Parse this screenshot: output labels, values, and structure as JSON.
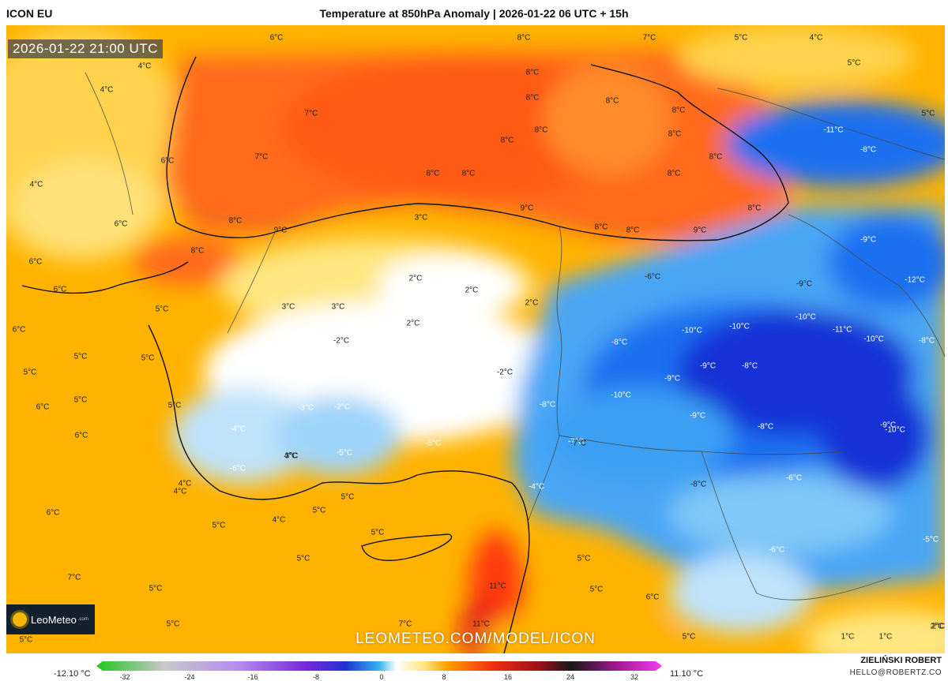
{
  "header": {
    "model": "ICON EU",
    "title": "Temperature at 850hPa Anomaly | 2026-01-22 06 UTC + 15h"
  },
  "map": {
    "valid_time": "2026-01-22 21:00 UTC",
    "watermark": "LEOMETEO.COM/MODEL/ICON",
    "logo_text": "LeoMeteo",
    "logo_suffix": ".com",
    "labels": [
      "6°C",
      "8°C",
      "7°C",
      "5°C",
      "4°C",
      "5°C",
      "4°C",
      "4°C",
      "5°C",
      "7°C",
      "8°C",
      "8°C",
      "6°C",
      "8°C",
      "8°C",
      "8°C",
      "4°C",
      "8°C",
      "7°C",
      "8°C",
      "8°C",
      "8°C",
      "8°C",
      "8°C",
      "-11°C",
      "-8°C",
      "8°C",
      "9°C",
      "8°C",
      "3°C",
      "9°C",
      "8°C",
      "8°C",
      "9°C",
      "6°C",
      "-9°C",
      "8°C",
      "6°C",
      "-6°C",
      "-9°C",
      "-12°C",
      "2°C",
      "2°C",
      "3°C",
      "3°C",
      "2°C",
      "2°C",
      "6°C",
      "6°C",
      "5°C",
      "5°C",
      "-8°C",
      "-10°C",
      "-10°C",
      "-10°C",
      "-11°C",
      "-10°C",
      "2°C",
      "-2°C",
      "-9°C",
      "-8°C",
      "-9°C",
      "-8°C",
      "5°C",
      "5°C",
      "-8°C",
      "-3°C",
      "-2°C",
      "-2°C",
      "-5°C",
      "-8°C",
      "-10°C",
      "-9°C",
      "-4°C",
      "-5°C",
      "-5°C",
      "-8°C",
      "-9°C",
      "-10°C",
      "-7°C",
      "-4°C",
      "-6°C",
      "-6°C",
      "-8°C",
      "6°C",
      "4°C",
      "5°C",
      "4°C",
      "6°C",
      "5°C",
      "5°C",
      "4°C",
      "5°C",
      "-5°C",
      "5°C",
      "6°C",
      "-6°C",
      "5°C",
      "5°C",
      "5°C",
      "11°C",
      "5°C",
      "6°C",
      "5°C",
      "7°C",
      "11°C",
      "5°C",
      "5°C",
      "7°C",
      "5°C",
      "1°C",
      "1°C",
      "2°C",
      "3°C",
      "4°C",
      "2°C",
      "-7°C",
      "-2°C"
    ]
  },
  "colorbar": {
    "min_label": "-12.10 °C",
    "max_label": "11.10 °C",
    "ticks": [
      "-32",
      "-24",
      "-16",
      "-8",
      "0",
      "8",
      "16",
      "24",
      "32"
    ]
  },
  "footer": {
    "author": "ZIELIŃSKI ROBERT",
    "email": "HELLO@ROBERTZ.CO"
  },
  "colors": {
    "sea_warm": "#ff6a1a",
    "land_warm": "#ffb300",
    "mild": "#ffe680",
    "neutral": "#ffffff",
    "cool": "#7fc8f8",
    "cold": "#1e6ff0",
    "very_cold": "#1432d6"
  }
}
